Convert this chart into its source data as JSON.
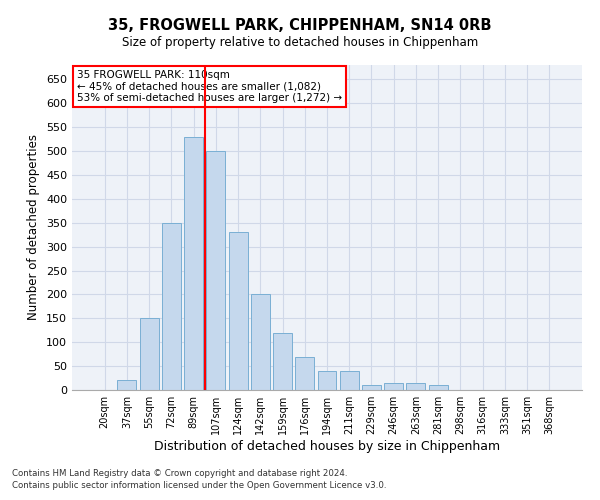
{
  "title": "35, FROGWELL PARK, CHIPPENHAM, SN14 0RB",
  "subtitle": "Size of property relative to detached houses in Chippenham",
  "xlabel": "Distribution of detached houses by size in Chippenham",
  "ylabel": "Number of detached properties",
  "categories": [
    "20sqm",
    "37sqm",
    "55sqm",
    "72sqm",
    "89sqm",
    "107sqm",
    "124sqm",
    "142sqm",
    "159sqm",
    "176sqm",
    "194sqm",
    "211sqm",
    "229sqm",
    "246sqm",
    "263sqm",
    "281sqm",
    "298sqm",
    "316sqm",
    "333sqm",
    "351sqm",
    "368sqm"
  ],
  "values": [
    0,
    20,
    150,
    350,
    530,
    500,
    330,
    200,
    120,
    70,
    40,
    40,
    10,
    15,
    15,
    10,
    0,
    0,
    0,
    0,
    0
  ],
  "bar_color": "#c5d8ed",
  "bar_edge_color": "#7aafd4",
  "grid_color": "#d0d8e8",
  "background_color": "#eef2f8",
  "vline_x_idx": 5,
  "vline_color": "red",
  "annotation_text": "35 FROGWELL PARK: 110sqm\n← 45% of detached houses are smaller (1,082)\n53% of semi-detached houses are larger (1,272) →",
  "annotation_box_color": "white",
  "annotation_box_edge": "red",
  "footnote1": "Contains HM Land Registry data © Crown copyright and database right 2024.",
  "footnote2": "Contains public sector information licensed under the Open Government Licence v3.0.",
  "ylim": [
    0,
    680
  ],
  "yticks": [
    0,
    50,
    100,
    150,
    200,
    250,
    300,
    350,
    400,
    450,
    500,
    550,
    600,
    650
  ]
}
